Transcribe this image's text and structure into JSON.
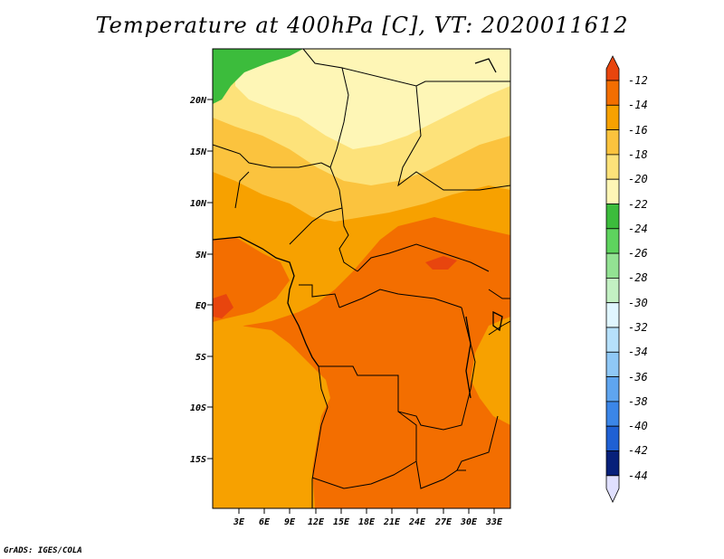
{
  "title": "Temperature at 400hPa [C], VT: 2020011612",
  "credit": "GrADS: IGES/COLA",
  "map": {
    "lat_labels": [
      "20N",
      "15N",
      "10N",
      "5N",
      "EQ",
      "5S",
      "10S",
      "15S"
    ],
    "lon_labels": [
      "3E",
      "6E",
      "9E",
      "12E",
      "15E",
      "18E",
      "21E",
      "24E",
      "27E",
      "30E",
      "33E"
    ]
  },
  "colorbar": {
    "labels": [
      "-12",
      "-14",
      "-16",
      "-18",
      "-20",
      "-22",
      "-24",
      "-26",
      "-28",
      "-30",
      "-32",
      "-34",
      "-36",
      "-38",
      "-40",
      "-42",
      "-44"
    ],
    "colors": [
      "#e8450e",
      "#f36e00",
      "#f7a100",
      "#fbc33e",
      "#fde27a",
      "#fef6b6",
      "#3cbc3c",
      "#5ed35e",
      "#93e293",
      "#c3f0c3",
      "#e0f6ff",
      "#b6e0fb",
      "#8fc8f6",
      "#5fa5ef",
      "#3b86e8",
      "#1f60d4",
      "#0a3aaa",
      "#07207a",
      "#e0e0ff"
    ]
  }
}
